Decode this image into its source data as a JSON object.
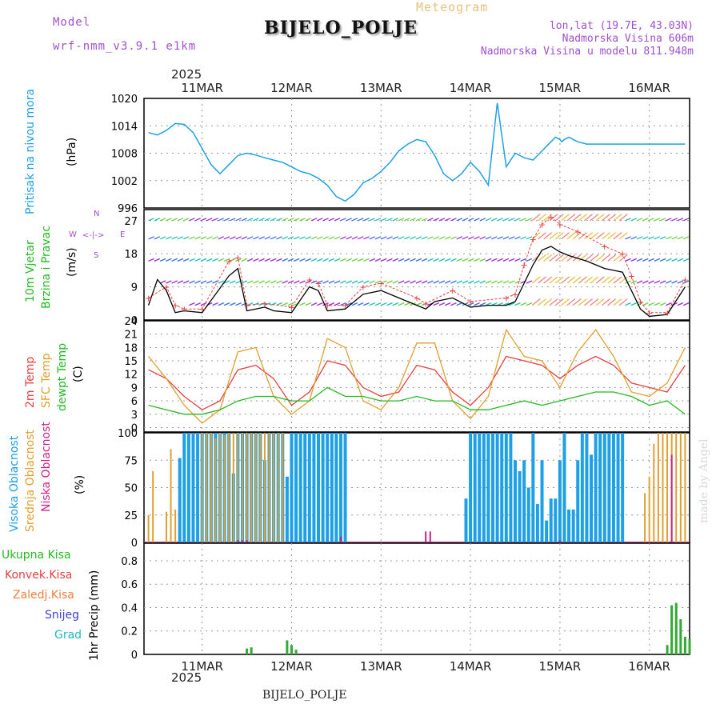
{
  "header": {
    "model_label": "Model",
    "model_name": "wrf-nmm_v3.9.1  e1km",
    "meteogram_label": "Meteogram",
    "station_title": "BIJELO_POLJE",
    "coords": "lon,lat (19.7E, 43.03N)",
    "altitude": "Nadmorska Visina 606m",
    "model_altitude": "Nadmorska Visina u modelu 811.948m"
  },
  "footer": {
    "station": "BIJELO_POLJE",
    "watermark": "made by Angel"
  },
  "axis": {
    "year": "2025",
    "days": [
      "11MAR",
      "12MAR",
      "13MAR",
      "14MAR",
      "15MAR",
      "16MAR"
    ]
  },
  "panel_labels": {
    "pressure": {
      "name": "Pritisak na nivou mora",
      "unit": "(hPa)"
    },
    "wind": {
      "line1": "10m Vjetar",
      "line2": "Brzina i Pravac",
      "unit": "(m/s)",
      "compass_n": "N",
      "compass_s": "S",
      "compass_w": "W",
      "compass_e": "E"
    },
    "temp": {
      "t2m": "2m Temp",
      "sfc": "SFC Temp",
      "dew": "dewpt Temp",
      "unit": "(C)"
    },
    "cloud": {
      "high": "Visoka Oblacnost",
      "mid": "Srednja Oblacnost",
      "low": "Niska Oblacnost",
      "unit": "(%)"
    },
    "precip": {
      "total": "Ukupna Kisa",
      "conv": "Konvek.Kisa",
      "frz": "Zaledj.Kisa",
      "snow": "Snijeg",
      "grad": "Grad",
      "unit": "1hr Precip (mm)"
    }
  },
  "colors": {
    "pressure": "#1ea0e6",
    "t2m": "#e84040",
    "sfc": "#e0a030",
    "dew": "#22bb22",
    "high_cloud": "#1ea0e6",
    "mid_cloud": "#e0a030",
    "low_cloud": "#cc2288",
    "precip": "#33aa33",
    "model": "#a050d0",
    "meteogram": "#e8c080"
  },
  "chart_data": [
    {
      "type": "line",
      "name": "pressure",
      "ylabel": "(hPa)",
      "ylim": [
        996,
        1020
      ],
      "yticks": [
        996,
        1002,
        1008,
        1014,
        1020
      ],
      "x": [
        -0.6,
        -0.5,
        -0.4,
        -0.3,
        -0.2,
        -0.1,
        0.0,
        0.1,
        0.2,
        0.3,
        0.4,
        0.5,
        0.6,
        0.7,
        0.8,
        0.9,
        1.0,
        1.1,
        1.2,
        1.3,
        1.4,
        1.5,
        1.6,
        1.7,
        1.8,
        1.9,
        2.0,
        2.1,
        2.2,
        2.3,
        2.4,
        2.5,
        2.6,
        2.7,
        2.8,
        2.9,
        3.0,
        3.1,
        3.2,
        3.3,
        3.4,
        3.5,
        3.6,
        3.7,
        3.8,
        3.9,
        3.95,
        4.0,
        4.02,
        4.05,
        4.1,
        4.15,
        4.2,
        4.3,
        4.4,
        4.5,
        4.6,
        4.7,
        4.8,
        4.9,
        5.0,
        5.1,
        5.2,
        5.3,
        5.4
      ],
      "y": [
        1012.5,
        1012.0,
        1013.0,
        1014.5,
        1014.3,
        1012.5,
        1009.0,
        1005.5,
        1003.5,
        1005.5,
        1007.5,
        1008.0,
        1007.6,
        1007.0,
        1006.5,
        1006.0,
        1005.0,
        1004.0,
        1003.5,
        1002.5,
        1001.0,
        998.5,
        997.5,
        999.0,
        1001.5,
        1002.5,
        1004.0,
        1006.0,
        1008.5,
        1010.0,
        1011.0,
        1010.5,
        1007.5,
        1003.5,
        1002.0,
        1003.5,
        1006.0,
        1004.0,
        1001.0,
        1019.0,
        1005.0,
        1008.0,
        1007.0,
        1006.5,
        1008.5,
        1010.5,
        1011.5,
        1011.0,
        1010.5,
        1011.0,
        1011.5,
        1011.0,
        1010.5,
        1010.0,
        1010.0,
        1010.0,
        1010.0,
        1010.0,
        1010.0,
        1010.0,
        1010.0,
        1010.0,
        1010.0,
        1010.0,
        1010.0
      ]
    },
    {
      "type": "line",
      "name": "wind",
      "ylabel": "(m/s)",
      "ylim": [
        0,
        30
      ],
      "yticks": [
        0,
        9,
        18,
        27
      ],
      "series": [
        {
          "name": "speed",
          "x": [
            -0.6,
            -0.5,
            -0.4,
            -0.3,
            -0.2,
            0.0,
            0.3,
            0.4,
            0.5,
            0.6,
            0.7,
            0.8,
            1.0,
            1.2,
            1.3,
            1.4,
            1.6,
            1.8,
            2.0,
            2.2,
            2.4,
            2.5,
            2.6,
            2.8,
            3.0,
            3.2,
            3.4,
            3.5,
            3.6,
            3.7,
            3.8,
            3.9,
            4.0,
            4.1,
            4.3,
            4.5,
            4.7,
            4.8,
            4.9,
            5.0,
            5.2,
            5.4
          ],
          "y": [
            4.0,
            11.0,
            8.0,
            2.0,
            2.5,
            2.0,
            12.0,
            14.0,
            2.5,
            3.0,
            3.5,
            2.5,
            2.0,
            9.0,
            8.0,
            2.5,
            3.0,
            7.0,
            8.0,
            6.0,
            4.0,
            3.0,
            5.0,
            6.0,
            3.5,
            4.0,
            4.0,
            5.0,
            10.0,
            15.0,
            19.0,
            20.0,
            18.5,
            17.5,
            16.0,
            14.0,
            13.0,
            8.0,
            3.0,
            1.0,
            1.5,
            9.0
          ]
        },
        {
          "name": "gust",
          "x": [
            -0.6,
            -0.4,
            -0.3,
            -0.2,
            0.0,
            0.3,
            0.4,
            0.5,
            0.7,
            1.0,
            1.2,
            1.3,
            1.4,
            1.6,
            1.8,
            2.0,
            2.4,
            2.5,
            2.8,
            3.0,
            3.4,
            3.5,
            3.6,
            3.7,
            3.8,
            3.9,
            4.0,
            4.2,
            4.5,
            4.7,
            4.8,
            4.9,
            5.0,
            5.2,
            5.4
          ],
          "y": [
            6.0,
            9.0,
            4.0,
            3.0,
            3.0,
            16.0,
            17.0,
            4.0,
            4.5,
            3.5,
            11.0,
            10.0,
            4.0,
            4.0,
            9.0,
            10.0,
            6.0,
            4.5,
            8.0,
            5.0,
            6.0,
            7.0,
            15.0,
            22.0,
            26.0,
            28.0,
            26.0,
            24.0,
            20.0,
            18.0,
            12.0,
            5.0,
            2.0,
            2.0,
            11.0
          ]
        }
      ]
    },
    {
      "type": "line",
      "name": "temperature",
      "ylabel": "(C)",
      "ylim": [
        -1,
        24
      ],
      "yticks": [
        0,
        3,
        6,
        9,
        12,
        15,
        18,
        21,
        24
      ],
      "series": [
        {
          "name": "2m Temp",
          "x": [
            -0.6,
            -0.4,
            -0.2,
            0.0,
            0.2,
            0.4,
            0.6,
            0.8,
            1.0,
            1.2,
            1.4,
            1.6,
            1.8,
            2.0,
            2.2,
            2.4,
            2.6,
            2.8,
            3.0,
            3.2,
            3.4,
            3.6,
            3.8,
            4.0,
            4.2,
            4.4,
            4.6,
            4.8,
            5.0,
            5.2,
            5.4
          ],
          "y": [
            13,
            11,
            7,
            4,
            6,
            13,
            14,
            11,
            5,
            8,
            15,
            14,
            9,
            7,
            8,
            14,
            13,
            8,
            5,
            9,
            16,
            15,
            14,
            11,
            14,
            16,
            14,
            10,
            9,
            8,
            14
          ]
        },
        {
          "name": "SFC Temp",
          "x": [
            -0.6,
            -0.4,
            -0.2,
            0.0,
            0.2,
            0.4,
            0.6,
            0.8,
            1.0,
            1.2,
            1.4,
            1.6,
            1.8,
            2.0,
            2.2,
            2.4,
            2.6,
            2.8,
            3.0,
            3.2,
            3.4,
            3.6,
            3.8,
            4.0,
            4.2,
            4.4,
            4.6,
            4.8,
            5.0,
            5.2,
            5.4
          ],
          "y": [
            16,
            11,
            5,
            1,
            4,
            17,
            18,
            7,
            3,
            6,
            20,
            18,
            6,
            4,
            9,
            19,
            19,
            6,
            2,
            7,
            22,
            16,
            15,
            9,
            17,
            22,
            16,
            8,
            7,
            10,
            18
          ]
        },
        {
          "name": "dewpt Temp",
          "x": [
            -0.6,
            -0.4,
            -0.2,
            0.0,
            0.2,
            0.4,
            0.6,
            0.8,
            1.0,
            1.2,
            1.4,
            1.6,
            1.8,
            2.0,
            2.2,
            2.4,
            2.6,
            2.8,
            3.0,
            3.2,
            3.4,
            3.6,
            3.8,
            4.0,
            4.2,
            4.4,
            4.6,
            4.8,
            5.0,
            5.2,
            5.4
          ],
          "y": [
            5,
            4,
            3,
            3,
            4,
            6,
            7,
            7,
            6,
            6,
            9,
            7,
            7,
            6,
            6,
            7,
            6,
            6,
            4,
            4,
            5,
            6,
            5,
            6,
            7,
            8,
            8,
            7,
            5,
            6,
            3
          ]
        }
      ]
    },
    {
      "type": "bar",
      "name": "clouds",
      "ylabel": "(%)",
      "ylim": [
        0,
        100
      ],
      "yticks": [
        0,
        25,
        50,
        75,
        100
      ],
      "series": [
        {
          "name": "Visoka Oblacnost",
          "x": [
            -0.25,
            -0.2,
            -0.15,
            -0.1,
            -0.05,
            0.0,
            0.05,
            0.1,
            0.15,
            0.2,
            0.25,
            0.3,
            0.35,
            0.4,
            0.45,
            0.5,
            0.55,
            0.6,
            0.65,
            0.7,
            0.75,
            0.8,
            0.85,
            0.9,
            0.95,
            1.0,
            1.05,
            1.1,
            1.15,
            1.2,
            1.25,
            1.3,
            1.35,
            1.4,
            1.45,
            1.5,
            1.55,
            1.6,
            2.95,
            3.0,
            3.05,
            3.1,
            3.15,
            3.2,
            3.25,
            3.3,
            3.35,
            3.4,
            3.45,
            3.5,
            3.55,
            3.6,
            3.65,
            3.7,
            3.75,
            3.8,
            3.85,
            3.9,
            3.95,
            4.0,
            4.05,
            4.1,
            4.15,
            4.2,
            4.25,
            4.3,
            4.35,
            4.4,
            4.45,
            4.5,
            4.55,
            4.6,
            4.65,
            4.7
          ],
          "y": [
            77,
            100,
            100,
            100,
            100,
            100,
            100,
            100,
            100,
            100,
            100,
            100,
            63,
            100,
            100,
            100,
            100,
            100,
            100,
            75,
            100,
            100,
            100,
            100,
            60,
            100,
            100,
            100,
            100,
            100,
            100,
            100,
            100,
            100,
            100,
            100,
            100,
            100,
            40,
            100,
            100,
            100,
            100,
            100,
            100,
            100,
            100,
            100,
            100,
            75,
            65,
            75,
            50,
            100,
            35,
            75,
            20,
            40,
            40,
            75,
            100,
            30,
            30,
            75,
            100,
            100,
            80,
            100,
            100,
            100,
            100,
            100,
            100,
            100
          ]
        },
        {
          "name": "Srednja Oblacnost",
          "x": [
            -0.6,
            -0.55,
            -0.4,
            -0.35,
            -0.3,
            0.0,
            0.05,
            0.1,
            0.15,
            0.2,
            0.25,
            0.3,
            0.35,
            0.4,
            0.45,
            0.5,
            0.55,
            0.6,
            0.65,
            0.7,
            0.75,
            0.8,
            0.85,
            0.9,
            4.95,
            5.0,
            5.05,
            5.1,
            5.15,
            5.2,
            5.25,
            5.3,
            5.35,
            5.4
          ],
          "y": [
            25,
            65,
            28,
            85,
            30,
            100,
            100,
            100,
            95,
            100,
            98,
            100,
            100,
            100,
            100,
            100,
            100,
            100,
            100,
            100,
            100,
            100,
            100,
            100,
            45,
            60,
            90,
            100,
            100,
            100,
            100,
            100,
            100,
            100
          ]
        },
        {
          "name": "Niska Oblacnost",
          "x": [
            0.4,
            0.45,
            0.5,
            1.55,
            2.5,
            2.55,
            4.0,
            5.25
          ],
          "y": [
            2,
            2,
            2,
            5,
            10,
            10,
            2,
            80
          ]
        }
      ]
    },
    {
      "type": "bar",
      "name": "precipitation",
      "ylabel": "1hr Precip (mm)",
      "ylim": [
        0,
        0.95
      ],
      "yticks": [
        0,
        0.2,
        0.4,
        0.6,
        0.8
      ],
      "series": [
        {
          "name": "Ukupna Kisa",
          "x": [
            0.5,
            0.55,
            0.95,
            1.0,
            1.05,
            5.2,
            5.25,
            5.3,
            5.35,
            5.4,
            5.45
          ],
          "y": [
            0.05,
            0.06,
            0.12,
            0.08,
            0.04,
            0.08,
            0.42,
            0.44,
            0.3,
            0.15,
            0.13
          ]
        }
      ]
    }
  ]
}
